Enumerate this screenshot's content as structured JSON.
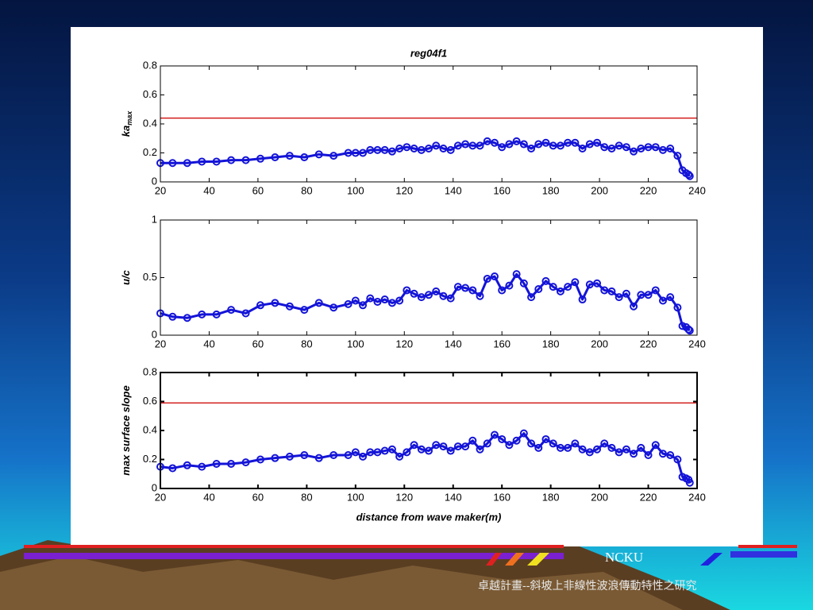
{
  "chart_data": [
    {
      "type": "line",
      "title": "reg04f1",
      "ylabel": "ka",
      "ylabel_subscript": "max",
      "x": [
        20,
        25,
        31,
        37,
        43,
        49,
        55,
        61,
        67,
        73,
        79,
        85,
        91,
        97,
        100,
        103,
        106,
        109,
        112,
        115,
        118,
        121,
        124,
        127,
        130,
        133,
        136,
        139,
        142,
        145,
        148,
        151,
        154,
        157,
        160,
        163,
        166,
        169,
        172,
        175,
        178,
        181,
        184,
        187,
        190,
        193,
        196,
        199,
        202,
        205,
        208,
        211,
        214,
        217,
        220,
        223,
        226,
        229,
        232,
        234,
        235.5,
        236.5,
        237
      ],
      "values": [
        0.13,
        0.13,
        0.13,
        0.14,
        0.14,
        0.15,
        0.15,
        0.16,
        0.17,
        0.18,
        0.17,
        0.19,
        0.18,
        0.2,
        0.2,
        0.2,
        0.22,
        0.22,
        0.22,
        0.21,
        0.23,
        0.24,
        0.23,
        0.22,
        0.23,
        0.25,
        0.23,
        0.22,
        0.25,
        0.26,
        0.25,
        0.25,
        0.28,
        0.27,
        0.24,
        0.26,
        0.28,
        0.26,
        0.23,
        0.26,
        0.27,
        0.25,
        0.25,
        0.27,
        0.27,
        0.23,
        0.26,
        0.27,
        0.24,
        0.23,
        0.25,
        0.24,
        0.21,
        0.23,
        0.24,
        0.24,
        0.22,
        0.23,
        0.18,
        0.08,
        0.06,
        0.05,
        0.04
      ],
      "color": "#1414d8",
      "reference_line": 0.44,
      "reference_color": "#d01010",
      "xlim": [
        20,
        240
      ],
      "xticks": [
        20,
        40,
        60,
        80,
        100,
        120,
        140,
        160,
        180,
        200,
        220,
        240
      ],
      "ylim": [
        0,
        0.8
      ],
      "yticks": [
        0,
        0.2,
        0.4,
        0.6,
        0.8
      ]
    },
    {
      "type": "line",
      "ylabel": "u/c",
      "x": [
        20,
        25,
        31,
        37,
        43,
        49,
        55,
        61,
        67,
        73,
        79,
        85,
        91,
        97,
        100,
        103,
        106,
        109,
        112,
        115,
        118,
        121,
        124,
        127,
        130,
        133,
        136,
        139,
        142,
        145,
        148,
        151,
        154,
        157,
        160,
        163,
        166,
        169,
        172,
        175,
        178,
        181,
        184,
        187,
        190,
        193,
        196,
        199,
        202,
        205,
        208,
        211,
        214,
        217,
        220,
        223,
        226,
        229,
        232,
        234,
        235.5,
        236.5,
        237
      ],
      "values": [
        0.19,
        0.16,
        0.15,
        0.18,
        0.18,
        0.22,
        0.19,
        0.26,
        0.28,
        0.25,
        0.22,
        0.28,
        0.24,
        0.27,
        0.3,
        0.26,
        0.32,
        0.29,
        0.31,
        0.28,
        0.3,
        0.39,
        0.36,
        0.33,
        0.35,
        0.38,
        0.34,
        0.32,
        0.42,
        0.41,
        0.39,
        0.34,
        0.49,
        0.51,
        0.39,
        0.43,
        0.53,
        0.45,
        0.33,
        0.4,
        0.47,
        0.42,
        0.38,
        0.42,
        0.46,
        0.31,
        0.44,
        0.45,
        0.39,
        0.38,
        0.33,
        0.36,
        0.25,
        0.35,
        0.35,
        0.39,
        0.3,
        0.33,
        0.24,
        0.08,
        0.07,
        0.05,
        0.04
      ],
      "color": "#1414d8",
      "xlim": [
        20,
        240
      ],
      "xticks": [
        20,
        40,
        60,
        80,
        100,
        120,
        140,
        160,
        180,
        200,
        220,
        240
      ],
      "ylim": [
        0,
        1
      ],
      "yticks": [
        0,
        0.5,
        1
      ]
    },
    {
      "type": "line",
      "ylabel": "max surface slope",
      "xlabel": "distance from wave maker(m)",
      "x": [
        20,
        25,
        31,
        37,
        43,
        49,
        55,
        61,
        67,
        73,
        79,
        85,
        91,
        97,
        100,
        103,
        106,
        109,
        112,
        115,
        118,
        121,
        124,
        127,
        130,
        133,
        136,
        139,
        142,
        145,
        148,
        151,
        154,
        157,
        160,
        163,
        166,
        169,
        172,
        175,
        178,
        181,
        184,
        187,
        190,
        193,
        196,
        199,
        202,
        205,
        208,
        211,
        214,
        217,
        220,
        223,
        226,
        229,
        232,
        234,
        235.5,
        236.5,
        237
      ],
      "values": [
        0.15,
        0.14,
        0.16,
        0.15,
        0.17,
        0.17,
        0.18,
        0.2,
        0.21,
        0.22,
        0.23,
        0.21,
        0.23,
        0.23,
        0.25,
        0.22,
        0.25,
        0.25,
        0.26,
        0.27,
        0.22,
        0.25,
        0.3,
        0.27,
        0.26,
        0.3,
        0.29,
        0.26,
        0.29,
        0.29,
        0.33,
        0.27,
        0.31,
        0.37,
        0.34,
        0.3,
        0.33,
        0.38,
        0.31,
        0.28,
        0.34,
        0.31,
        0.28,
        0.28,
        0.31,
        0.27,
        0.25,
        0.27,
        0.31,
        0.28,
        0.25,
        0.27,
        0.24,
        0.28,
        0.23,
        0.3,
        0.24,
        0.23,
        0.2,
        0.08,
        0.07,
        0.06,
        0.04
      ],
      "color": "#1414d8",
      "reference_line": 0.59,
      "reference_color": "#d01010",
      "xlim": [
        20,
        240
      ],
      "xticks": [
        20,
        40,
        60,
        80,
        100,
        120,
        140,
        160,
        180,
        200,
        220,
        240
      ],
      "ylim": [
        0,
        0.8
      ],
      "yticks": [
        0,
        0.2,
        0.4,
        0.6,
        0.8
      ]
    }
  ],
  "footer": {
    "org": "NCKU",
    "project": "卓越計畫--斜坡上非線性波浪傳動特性之研究"
  }
}
